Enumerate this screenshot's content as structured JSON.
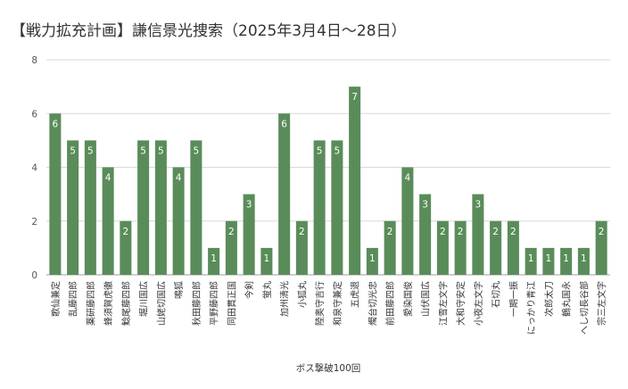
{
  "chart_data": {
    "type": "bar",
    "title": "【戦力拡充計画】謙信景光捜索（2025年3月4日～28日）",
    "xlabel": "ボス撃破100回",
    "ylabel": "",
    "ylim": [
      0,
      8
    ],
    "yticks": [
      0,
      2,
      4,
      6,
      8
    ],
    "grid": true,
    "legend": "none",
    "bar_color": "#5a8c5a",
    "categories": [
      "歌仙兼定",
      "乱藤四郎",
      "薬研藤四郎",
      "蜂須賀虎徹",
      "鯰尾藤四郎",
      "堀川国広",
      "山姥切国広",
      "鳴狐",
      "秋田藤四郎",
      "平野藤四郎",
      "同田貫正国",
      "今剣",
      "蛍丸",
      "加州清光",
      "小狐丸",
      "陸奥守吉行",
      "和泉守兼定",
      "五虎退",
      "燭台切光忠",
      "前田藤四郎",
      "愛染国俊",
      "山伏国広",
      "江雪左文字",
      "大和守安定",
      "小夜左文字",
      "石切丸",
      "一期一振",
      "にっかり青江",
      "次郎太刀",
      "鶴丸国永",
      "へし切長谷部",
      "宗三左文字"
    ],
    "values": [
      6,
      5,
      5,
      4,
      2,
      5,
      5,
      4,
      5,
      1,
      2,
      3,
      1,
      6,
      2,
      5,
      5,
      7,
      1,
      2,
      4,
      3,
      2,
      2,
      3,
      2,
      2,
      1,
      1,
      1,
      1,
      2
    ]
  }
}
